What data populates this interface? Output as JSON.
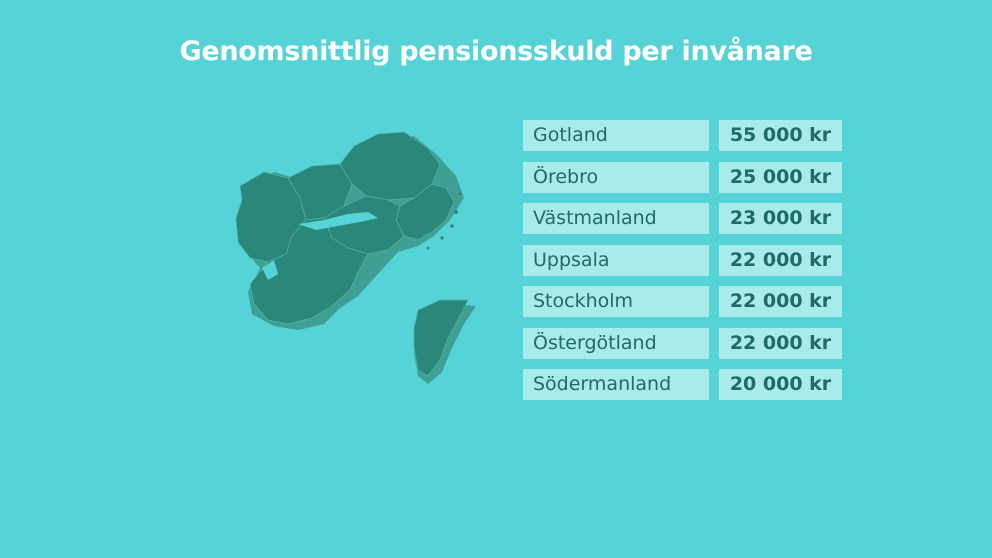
{
  "title": "Genomsnittlig pensionsskuld per invånare",
  "colors": {
    "background": "#55d3d6",
    "cell": "#a9eaeb",
    "text": "#1f6a6a",
    "map_fill": "#2a877a",
    "map_shadow": "#3f9f93",
    "map_lines": "#4eb8b0"
  },
  "chart_data": {
    "type": "table",
    "title": "Genomsnittlig pensionsskuld per invånare",
    "rows": [
      {
        "region": "Gotland",
        "value": 55000,
        "label": "55 000 kr"
      },
      {
        "region": "Örebro",
        "value": 25000,
        "label": "25 000 kr"
      },
      {
        "region": "Västmanland",
        "value": 23000,
        "label": "23 000 kr"
      },
      {
        "region": "Uppsala",
        "value": 22000,
        "label": "22 000 kr"
      },
      {
        "region": "Stockholm",
        "value": 22000,
        "label": "22 000 kr"
      },
      {
        "region": "Östergötland",
        "value": 22000,
        "label": "22 000 kr"
      },
      {
        "region": "Södermanland",
        "value": 20000,
        "label": "20 000 kr"
      }
    ]
  }
}
